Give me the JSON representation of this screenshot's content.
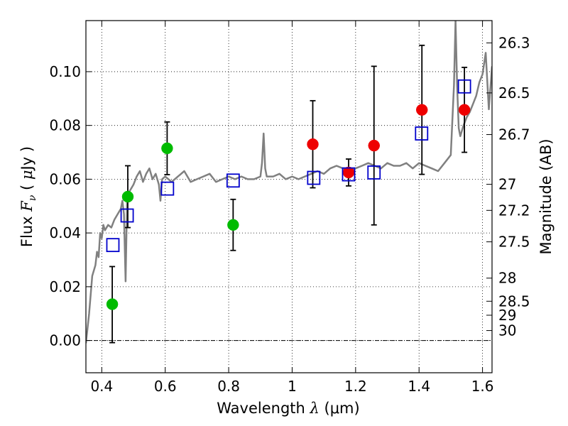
{
  "chart_data": {
    "type": "scatter",
    "title": "",
    "xlabel": "Wavelength  λ (μm)",
    "ylabel": "Flux  F_ν  ( μJy )",
    "ylabel_text": {
      "prefix": "Flux  ",
      "var": "F",
      "sub": "ν",
      "unit_open": "  ( ",
      "mu": "μ",
      "unit_rest": "Jy )"
    },
    "xlabel_text": {
      "prefix": "Wavelength  ",
      "var": "λ",
      "unit": " (μm)"
    },
    "xlim": [
      0.35,
      1.63
    ],
    "ylim": [
      -0.012,
      0.119
    ],
    "xticks": [
      0.4,
      0.6,
      0.8,
      1.0,
      1.2,
      1.4,
      1.6
    ],
    "xtick_labels": [
      "0.4",
      "0.6",
      "0.8",
      "1",
      "1.2",
      "1.4",
      "1.6"
    ],
    "yticks": [
      0.0,
      0.02,
      0.04,
      0.06,
      0.08,
      0.1
    ],
    "ytick_labels": [
      "0.00",
      "0.02",
      "0.04",
      "0.06",
      "0.08",
      "0.10"
    ],
    "grid": true,
    "right_axis": {
      "label": "Magnitude (AB)",
      "ticks": [
        {
          "label": "26.3",
          "flux": 0.1107
        },
        {
          "label": "26.5",
          "flux": 0.0921
        },
        {
          "label": "26.7",
          "flux": 0.0766
        },
        {
          "label": "27",
          "flux": 0.0581
        },
        {
          "label": "27.2",
          "flux": 0.0484
        },
        {
          "label": "27.5",
          "flux": 0.0367
        },
        {
          "label": "28",
          "flux": 0.0232
        },
        {
          "label": "28.5",
          "flux": 0.0146
        },
        {
          "label": "29",
          "flux": 0.0094
        },
        {
          "label": "30",
          "flux": 0.0037
        }
      ]
    },
    "colors": {
      "green": "#00bb00",
      "red": "#ee0000",
      "model_box": "#0000cc",
      "spectrum": "#808080"
    },
    "series": [
      {
        "name": "spectrum",
        "kind": "line",
        "x": [
          0.35,
          0.36,
          0.37,
          0.38,
          0.385,
          0.39,
          0.395,
          0.4,
          0.405,
          0.41,
          0.42,
          0.43,
          0.44,
          0.45,
          0.46,
          0.465,
          0.47,
          0.475,
          0.48,
          0.49,
          0.5,
          0.51,
          0.52,
          0.53,
          0.54,
          0.55,
          0.56,
          0.57,
          0.58,
          0.585,
          0.59,
          0.6,
          0.62,
          0.64,
          0.66,
          0.68,
          0.7,
          0.72,
          0.74,
          0.76,
          0.78,
          0.8,
          0.82,
          0.84,
          0.86,
          0.88,
          0.9,
          0.905,
          0.91,
          0.915,
          0.92,
          0.94,
          0.96,
          0.98,
          1.0,
          1.02,
          1.04,
          1.06,
          1.08,
          1.1,
          1.12,
          1.14,
          1.16,
          1.18,
          1.2,
          1.22,
          1.24,
          1.26,
          1.28,
          1.3,
          1.32,
          1.34,
          1.36,
          1.38,
          1.4,
          1.42,
          1.44,
          1.46,
          1.48,
          1.5,
          1.51,
          1.515,
          1.52,
          1.525,
          1.53,
          1.54,
          1.55,
          1.56,
          1.57,
          1.58,
          1.59,
          1.6,
          1.61,
          1.62,
          1.63
        ],
        "y": [
          -0.001,
          0.01,
          0.024,
          0.028,
          0.033,
          0.031,
          0.04,
          0.038,
          0.043,
          0.041,
          0.043,
          0.042,
          0.045,
          0.047,
          0.049,
          0.052,
          0.047,
          0.022,
          0.054,
          0.056,
          0.058,
          0.061,
          0.063,
          0.059,
          0.062,
          0.064,
          0.06,
          0.062,
          0.058,
          0.052,
          0.06,
          0.061,
          0.059,
          0.061,
          0.063,
          0.059,
          0.06,
          0.061,
          0.062,
          0.059,
          0.06,
          0.061,
          0.06,
          0.061,
          0.06,
          0.06,
          0.061,
          0.066,
          0.077,
          0.064,
          0.061,
          0.061,
          0.062,
          0.06,
          0.061,
          0.06,
          0.061,
          0.062,
          0.063,
          0.062,
          0.064,
          0.065,
          0.064,
          0.063,
          0.064,
          0.065,
          0.066,
          0.065,
          0.064,
          0.066,
          0.065,
          0.065,
          0.066,
          0.064,
          0.066,
          0.065,
          0.064,
          0.063,
          0.066,
          0.069,
          0.095,
          0.119,
          0.095,
          0.079,
          0.076,
          0.08,
          0.083,
          0.085,
          0.088,
          0.091,
          0.096,
          0.099,
          0.107,
          0.086,
          0.102
        ]
      },
      {
        "name": "green",
        "kind": "points",
        "points": [
          {
            "x": 0.433,
            "y": 0.0135,
            "err_lo": 0.0143,
            "err_hi": 0.014
          },
          {
            "x": 0.482,
            "y": 0.0535,
            "err_lo": 0.0115,
            "err_hi": 0.0115
          },
          {
            "x": 0.606,
            "y": 0.0715,
            "err_lo": 0.0098,
            "err_hi": 0.0098
          },
          {
            "x": 0.814,
            "y": 0.043,
            "err_lo": 0.0095,
            "err_hi": 0.0095
          }
        ]
      },
      {
        "name": "red",
        "kind": "points",
        "points": [
          {
            "x": 1.065,
            "y": 0.073,
            "err_lo": 0.0162,
            "err_hi": 0.0162
          },
          {
            "x": 1.178,
            "y": 0.0625,
            "err_lo": 0.005,
            "err_hi": 0.005
          },
          {
            "x": 1.258,
            "y": 0.0725,
            "err_lo": 0.0295,
            "err_hi": 0.0295
          },
          {
            "x": 1.409,
            "y": 0.0858,
            "err_lo": 0.024,
            "err_hi": 0.024
          },
          {
            "x": 1.543,
            "y": 0.0858,
            "err_lo": 0.0158,
            "err_hi": 0.0158
          }
        ]
      },
      {
        "name": "model",
        "kind": "boxes",
        "points": [
          {
            "x": 0.435,
            "y": 0.0355
          },
          {
            "x": 0.48,
            "y": 0.0465
          },
          {
            "x": 0.607,
            "y": 0.0565
          },
          {
            "x": 0.814,
            "y": 0.0595
          },
          {
            "x": 1.068,
            "y": 0.0605
          },
          {
            "x": 1.178,
            "y": 0.0618
          },
          {
            "x": 1.258,
            "y": 0.0625
          },
          {
            "x": 1.408,
            "y": 0.077
          },
          {
            "x": 1.543,
            "y": 0.0945
          }
        ]
      }
    ]
  }
}
